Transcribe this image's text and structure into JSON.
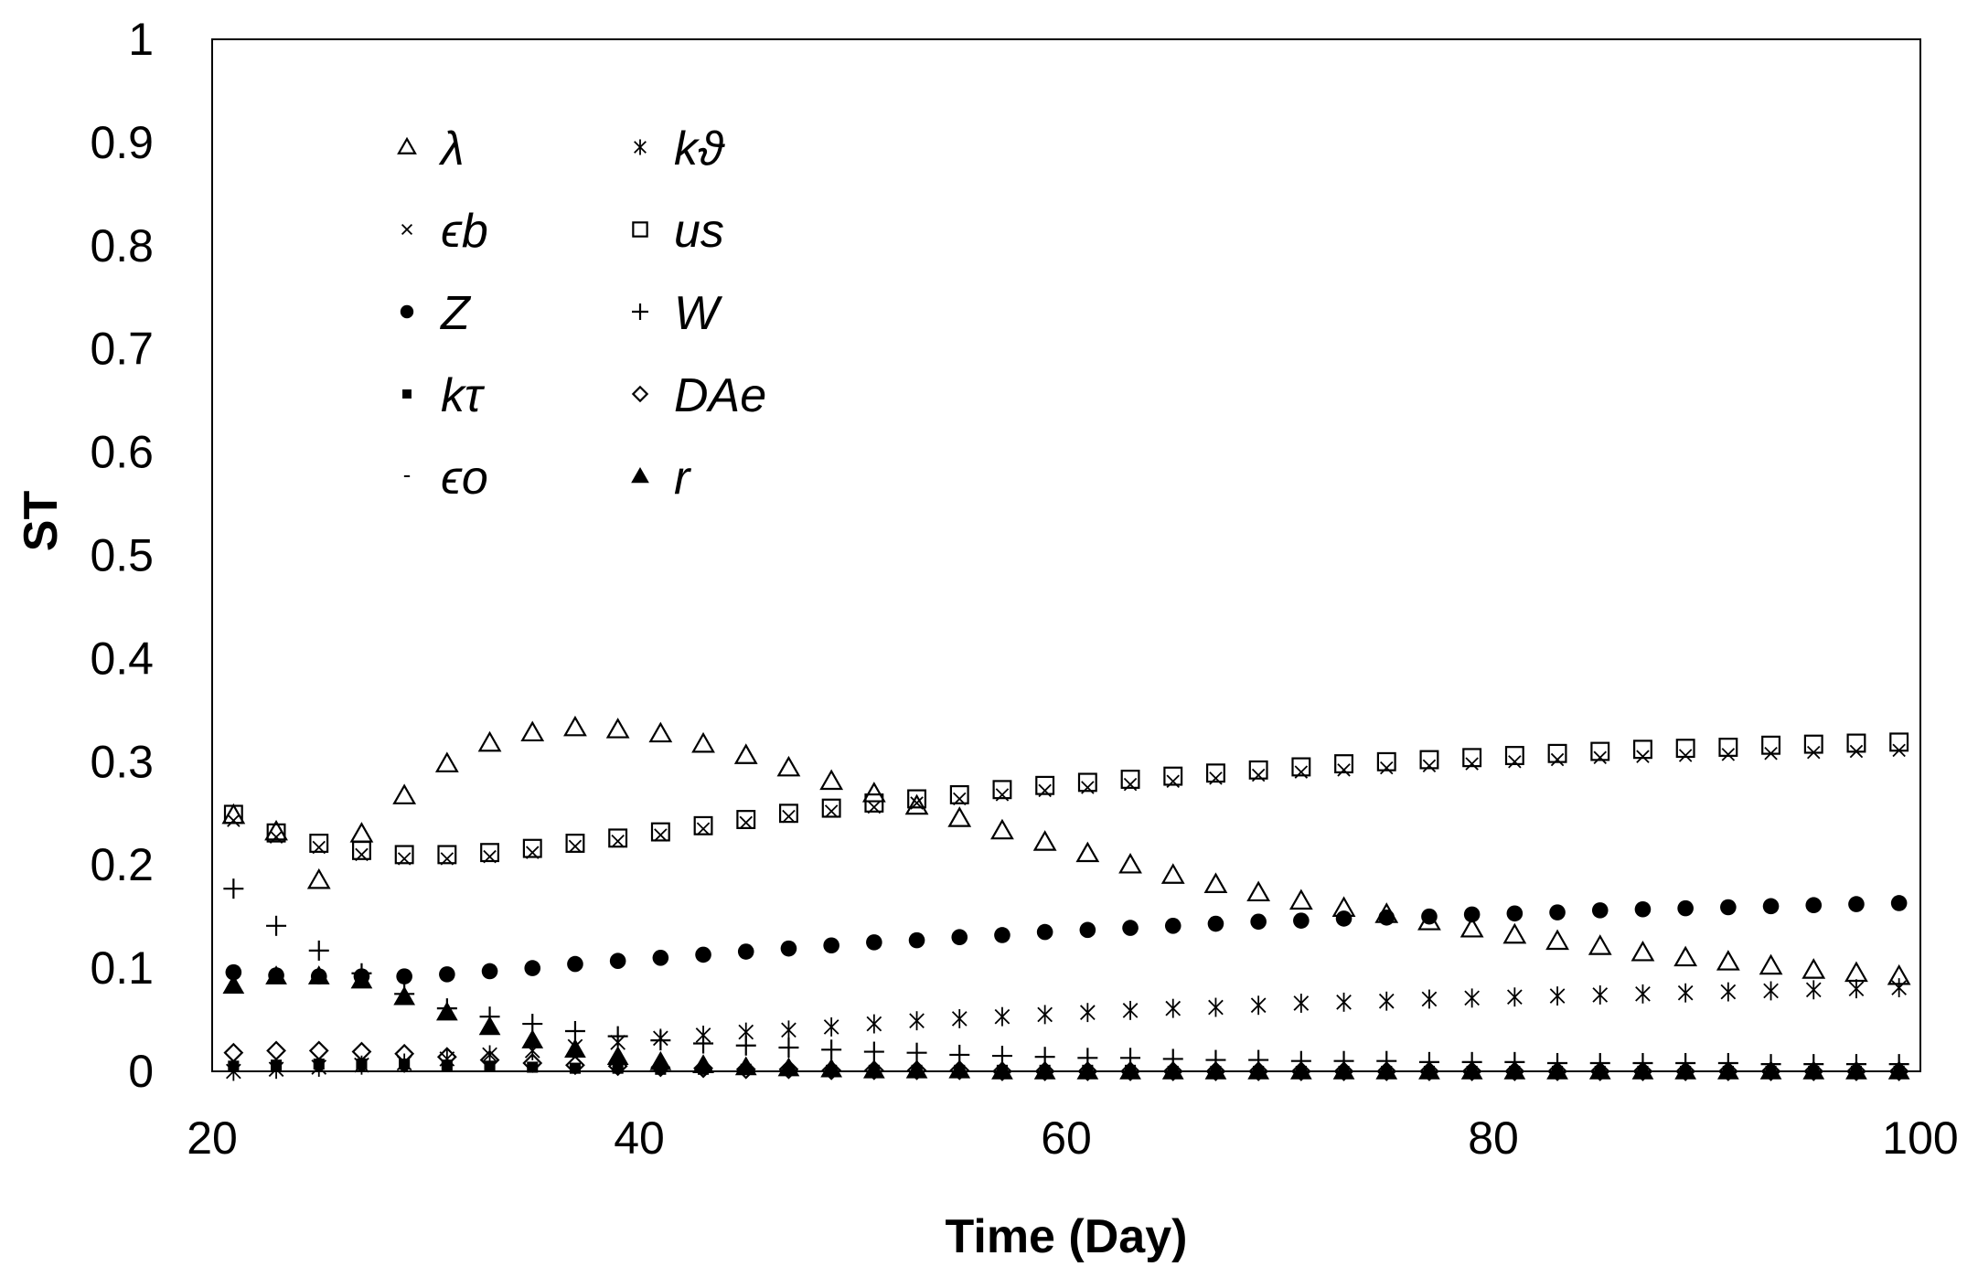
{
  "chart_data": {
    "type": "scatter",
    "title": "",
    "xlabel": "Time (Day)",
    "ylabel": "ST",
    "xlim": [
      20,
      100
    ],
    "ylim": [
      0,
      1
    ],
    "xticks": [
      "20",
      "40",
      "60",
      "80",
      "100"
    ],
    "yticks": [
      "0",
      "0.1",
      "0.2",
      "0.3",
      "0.4",
      "0.5",
      "0.6",
      "0.7",
      "0.8",
      "0.9",
      "1"
    ],
    "grid": false,
    "legend_position": "top-left",
    "x": [
      21,
      23,
      25,
      27,
      29,
      31,
      33,
      35,
      37,
      39,
      41,
      43,
      45,
      47,
      49,
      51,
      53,
      55,
      57,
      59,
      61,
      63,
      65,
      67,
      69,
      71,
      73,
      75,
      77,
      79,
      81,
      83,
      85,
      87,
      89,
      91,
      93,
      95,
      97,
      99
    ],
    "series": [
      {
        "name": "λ",
        "marker": "triangle-open",
        "values": [
          0.248,
          0.232,
          0.185,
          0.23,
          0.267,
          0.298,
          0.318,
          0.328,
          0.333,
          0.331,
          0.327,
          0.317,
          0.306,
          0.294,
          0.281,
          0.269,
          0.257,
          0.245,
          0.233,
          0.222,
          0.211,
          0.2,
          0.19,
          0.181,
          0.173,
          0.165,
          0.158,
          0.152,
          0.145,
          0.138,
          0.132,
          0.126,
          0.121,
          0.115,
          0.11,
          0.106,
          0.102,
          0.098,
          0.095,
          0.092
        ]
      },
      {
        "name": "kϑ",
        "marker": "asterisk",
        "values": [
          0.0,
          0.002,
          0.004,
          0.006,
          0.008,
          0.012,
          0.016,
          0.02,
          0.024,
          0.028,
          0.032,
          0.035,
          0.038,
          0.04,
          0.043,
          0.046,
          0.049,
          0.051,
          0.053,
          0.055,
          0.057,
          0.059,
          0.061,
          0.062,
          0.064,
          0.066,
          0.067,
          0.068,
          0.07,
          0.071,
          0.072,
          0.073,
          0.074,
          0.075,
          0.076,
          0.077,
          0.078,
          0.079,
          0.08,
          0.081
        ]
      },
      {
        "name": "ϵb",
        "marker": "x",
        "values": [
          0.243,
          0.227,
          0.217,
          0.21,
          0.206,
          0.206,
          0.208,
          0.212,
          0.218,
          0.223,
          0.229,
          0.235,
          0.241,
          0.247,
          0.252,
          0.256,
          0.26,
          0.264,
          0.268,
          0.272,
          0.275,
          0.278,
          0.281,
          0.284,
          0.287,
          0.29,
          0.292,
          0.294,
          0.296,
          0.298,
          0.3,
          0.302,
          0.304,
          0.305,
          0.306,
          0.307,
          0.308,
          0.309,
          0.31,
          0.311
        ]
      },
      {
        "name": "us",
        "marker": "square-open",
        "values": [
          0.249,
          0.231,
          0.221,
          0.214,
          0.21,
          0.21,
          0.212,
          0.216,
          0.221,
          0.226,
          0.232,
          0.238,
          0.244,
          0.25,
          0.255,
          0.26,
          0.264,
          0.268,
          0.273,
          0.277,
          0.28,
          0.283,
          0.286,
          0.289,
          0.292,
          0.295,
          0.298,
          0.3,
          0.302,
          0.304,
          0.306,
          0.308,
          0.31,
          0.312,
          0.313,
          0.314,
          0.316,
          0.317,
          0.318,
          0.319
        ]
      },
      {
        "name": "Z",
        "marker": "circle-filled",
        "values": [
          0.096,
          0.093,
          0.092,
          0.092,
          0.092,
          0.094,
          0.097,
          0.1,
          0.104,
          0.107,
          0.11,
          0.113,
          0.116,
          0.119,
          0.122,
          0.125,
          0.127,
          0.13,
          0.132,
          0.135,
          0.137,
          0.139,
          0.141,
          0.143,
          0.145,
          0.146,
          0.148,
          0.149,
          0.15,
          0.152,
          0.153,
          0.154,
          0.156,
          0.157,
          0.158,
          0.159,
          0.16,
          0.161,
          0.162,
          0.163
        ]
      },
      {
        "name": "W",
        "marker": "plus",
        "values": [
          0.177,
          0.141,
          0.117,
          0.095,
          0.075,
          0.061,
          0.053,
          0.046,
          0.039,
          0.034,
          0.03,
          0.027,
          0.025,
          0.023,
          0.021,
          0.019,
          0.018,
          0.016,
          0.015,
          0.014,
          0.013,
          0.013,
          0.012,
          0.011,
          0.011,
          0.01,
          0.01,
          0.01,
          0.009,
          0.009,
          0.009,
          0.008,
          0.008,
          0.008,
          0.008,
          0.008,
          0.007,
          0.007,
          0.007,
          0.007
        ]
      },
      {
        "name": "kτ",
        "marker": "square-filled",
        "values": [
          0.005,
          0.006,
          0.007,
          0.007,
          0.007,
          0.006,
          0.005,
          0.004,
          0.003,
          0.003,
          0.002,
          0.002,
          0.002,
          0.001,
          0.001,
          0.001,
          0.001,
          0.001,
          0.001,
          0.001,
          0.001,
          0.001,
          0.0,
          0.0,
          0.0,
          0.0,
          0.0,
          0.0,
          0.0,
          0.0,
          0.0,
          0.0,
          0.0,
          0.0,
          0.0,
          0.0,
          0.0,
          0.0,
          0.0,
          0.0
        ]
      },
      {
        "name": "DAe",
        "marker": "diamond-open",
        "values": [
          0.018,
          0.02,
          0.02,
          0.019,
          0.017,
          0.014,
          0.011,
          0.008,
          0.006,
          0.005,
          0.004,
          0.003,
          0.002,
          0.002,
          0.001,
          0.001,
          0.001,
          0.001,
          0.0,
          0.0,
          0.0,
          0.0,
          0.0,
          0.0,
          0.0,
          0.0,
          0.0,
          0.0,
          0.0,
          0.0,
          0.0,
          0.0,
          0.0,
          0.0,
          0.0,
          0.0,
          0.0,
          0.0,
          0.0,
          0.0
        ]
      },
      {
        "name": "ϵo",
        "marker": "dash",
        "values": [
          0.001,
          0.001,
          0.001,
          0.001,
          0.001,
          0.001,
          0.001,
          0.001,
          0.001,
          0.001,
          0.001,
          0.001,
          0.001,
          0.001,
          0.001,
          0.001,
          0.001,
          0.001,
          0.001,
          0.001,
          0.001,
          0.001,
          0.001,
          0.001,
          0.001,
          0.001,
          0.001,
          0.001,
          0.001,
          0.001,
          0.001,
          0.001,
          0.001,
          0.001,
          0.001,
          0.001,
          0.001,
          0.001,
          0.001,
          0.001
        ]
      },
      {
        "name": "r",
        "marker": "triangle-filled",
        "values": [
          0.083,
          0.092,
          0.092,
          0.088,
          0.072,
          0.057,
          0.043,
          0.03,
          0.021,
          0.014,
          0.009,
          0.006,
          0.004,
          0.003,
          0.002,
          0.001,
          0.001,
          0.001,
          0.0,
          0.0,
          0.0,
          0.0,
          0.0,
          0.0,
          0.0,
          0.0,
          0.0,
          0.0,
          0.0,
          0.0,
          0.0,
          0.0,
          0.0,
          0.0,
          0.0,
          0.0,
          0.0,
          0.0,
          0.0,
          0.0
        ]
      }
    ]
  }
}
